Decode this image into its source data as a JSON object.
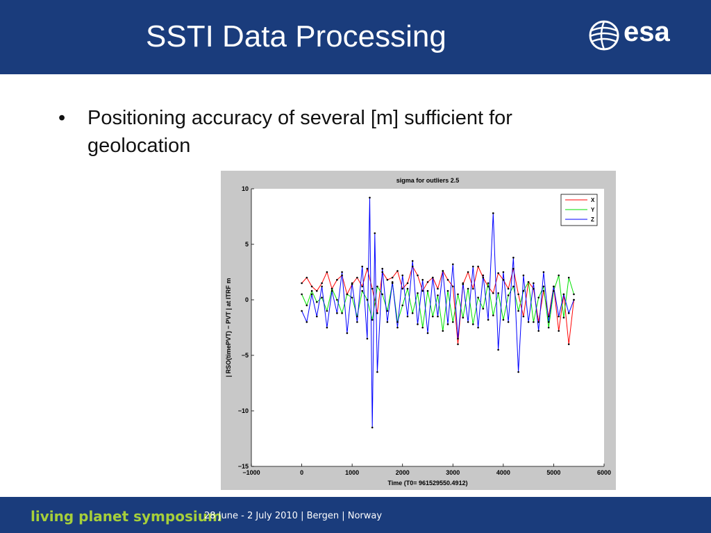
{
  "slide": {
    "title": "SSTI Data Processing",
    "logo_text": "esa",
    "bullet_symbol": "•",
    "bullet": "Positioning accuracy of several [m] sufficient for geolocation",
    "footer_brand": "living planet symposium",
    "footer_info": "28 June - 2 July 2010 | Bergen | Norway"
  },
  "colors": {
    "header_bg": "#1a3c7c",
    "footer_brand": "#a6cf3a",
    "series_x": "#ff0000",
    "series_y": "#00e000",
    "series_z": "#0000ff",
    "markers": "#000000"
  },
  "chart_data": {
    "type": "line",
    "title": "sigma for outliers 2.5",
    "xlabel": "Time (T0= 961529550.4912)",
    "ylabel": "| RSO(timePVT) − PVT | at ITRF m",
    "xlim": [
      -1000,
      6000
    ],
    "ylim": [
      -15,
      10
    ],
    "xticks": [
      -1000,
      0,
      1000,
      2000,
      3000,
      4000,
      5000,
      6000
    ],
    "yticks": [
      -15,
      -10,
      -5,
      0,
      5,
      10
    ],
    "xtick_labels": [
      "−1000",
      "0",
      "1000",
      "2000",
      "3000",
      "4000",
      "5000",
      "6000"
    ],
    "ytick_labels": [
      "−15",
      "−10",
      "−5",
      "0",
      "5",
      "10"
    ],
    "legend_position": "top-right",
    "grid": false,
    "markers": "black dots on every sample",
    "series": [
      {
        "name": "X",
        "x": [
          0,
          100,
          200,
          300,
          400,
          500,
          600,
          700,
          800,
          900,
          1000,
          1100,
          1200,
          1300,
          1400,
          1500,
          1600,
          1700,
          1800,
          1900,
          2000,
          2100,
          2200,
          2300,
          2400,
          2500,
          2600,
          2700,
          2800,
          2900,
          3000,
          3100,
          3200,
          3300,
          3400,
          3500,
          3600,
          3700,
          3800,
          3900,
          4000,
          4100,
          4200,
          4300,
          4400,
          4500,
          4600,
          4700,
          4800,
          4900,
          5000,
          5100,
          5200,
          5300,
          5400
        ],
        "y": [
          1.5,
          2.0,
          1.2,
          0.8,
          1.5,
          2.5,
          1.0,
          1.8,
          2.2,
          0.5,
          1.4,
          2.0,
          1.2,
          2.8,
          1.0,
          -1.2,
          2.5,
          1.8,
          2.0,
          2.6,
          1.0,
          1.5,
          3.0,
          2.2,
          0.8,
          1.6,
          2.0,
          1.0,
          2.6,
          1.8,
          1.2,
          -4.0,
          1.4,
          2.5,
          1.0,
          3.0,
          2.0,
          1.2,
          0.6,
          2.4,
          1.8,
          1.0,
          2.8,
          0.5,
          -1.5,
          1.6,
          1.0,
          -2.0,
          0.8,
          -1.5,
          1.2,
          -2.8,
          0.5,
          -4.0,
          0.0
        ]
      },
      {
        "name": "Y",
        "x": [
          0,
          100,
          200,
          300,
          400,
          500,
          600,
          700,
          800,
          900,
          1000,
          1100,
          1200,
          1300,
          1400,
          1500,
          1600,
          1700,
          1800,
          1900,
          2000,
          2100,
          2200,
          2300,
          2400,
          2500,
          2600,
          2700,
          2800,
          2900,
          3000,
          3100,
          3200,
          3300,
          3400,
          3500,
          3600,
          3700,
          3800,
          3900,
          4000,
          4100,
          4200,
          4300,
          4400,
          4500,
          4600,
          4700,
          4800,
          4900,
          5000,
          5100,
          5200,
          5300,
          5400
        ],
        "y": [
          0.5,
          -0.5,
          0.8,
          -0.2,
          0.2,
          -1.0,
          1.0,
          0.0,
          -1.2,
          0.5,
          0.2,
          -1.5,
          0.8,
          0.0,
          -1.8,
          1.2,
          0.5,
          -1.0,
          1.5,
          -2.0,
          -0.5,
          1.0,
          -1.2,
          0.6,
          -2.5,
          0.8,
          -1.5,
          0.4,
          -2.8,
          0.8,
          -2.0,
          0.5,
          -1.6,
          1.0,
          -2.2,
          0.2,
          -0.8,
          1.5,
          -1.4,
          0.6,
          -1.8,
          0.4,
          1.2,
          -1.0,
          0.8,
          1.6,
          -2.0,
          0.2,
          1.2,
          -2.5,
          0.8,
          2.2,
          -1.6,
          2.0,
          0.5
        ]
      },
      {
        "name": "Z",
        "x": [
          0,
          100,
          200,
          300,
          400,
          500,
          600,
          700,
          800,
          900,
          1000,
          1100,
          1200,
          1300,
          1350,
          1400,
          1450,
          1500,
          1600,
          1700,
          1800,
          1900,
          2000,
          2100,
          2200,
          2300,
          2400,
          2500,
          2600,
          2700,
          2800,
          2900,
          3000,
          3100,
          3200,
          3300,
          3400,
          3500,
          3600,
          3700,
          3800,
          3900,
          4000,
          4100,
          4200,
          4300,
          4400,
          4500,
          4600,
          4700,
          4800,
          4900,
          5000,
          5100,
          5200,
          5300,
          5400
        ],
        "y": [
          -1.0,
          -2.0,
          0.5,
          -1.5,
          1.2,
          -2.5,
          0.8,
          -1.2,
          2.5,
          -3.0,
          1.5,
          -2.0,
          3.0,
          -3.5,
          9.2,
          -11.5,
          6.0,
          -6.5,
          2.8,
          -2.0,
          1.6,
          -2.5,
          2.2,
          -1.5,
          3.5,
          -2.2,
          1.8,
          -3.0,
          2.0,
          -1.5,
          2.6,
          -2.2,
          3.2,
          -3.5,
          1.5,
          -2.0,
          3.0,
          -2.5,
          2.2,
          -1.8,
          7.8,
          -4.5,
          2.5,
          -2.0,
          3.8,
          -6.5,
          2.2,
          -2.0,
          1.5,
          -2.8,
          2.5,
          -2.0,
          1.2,
          -1.5,
          0.5,
          -1.2,
          0.0
        ]
      }
    ]
  }
}
